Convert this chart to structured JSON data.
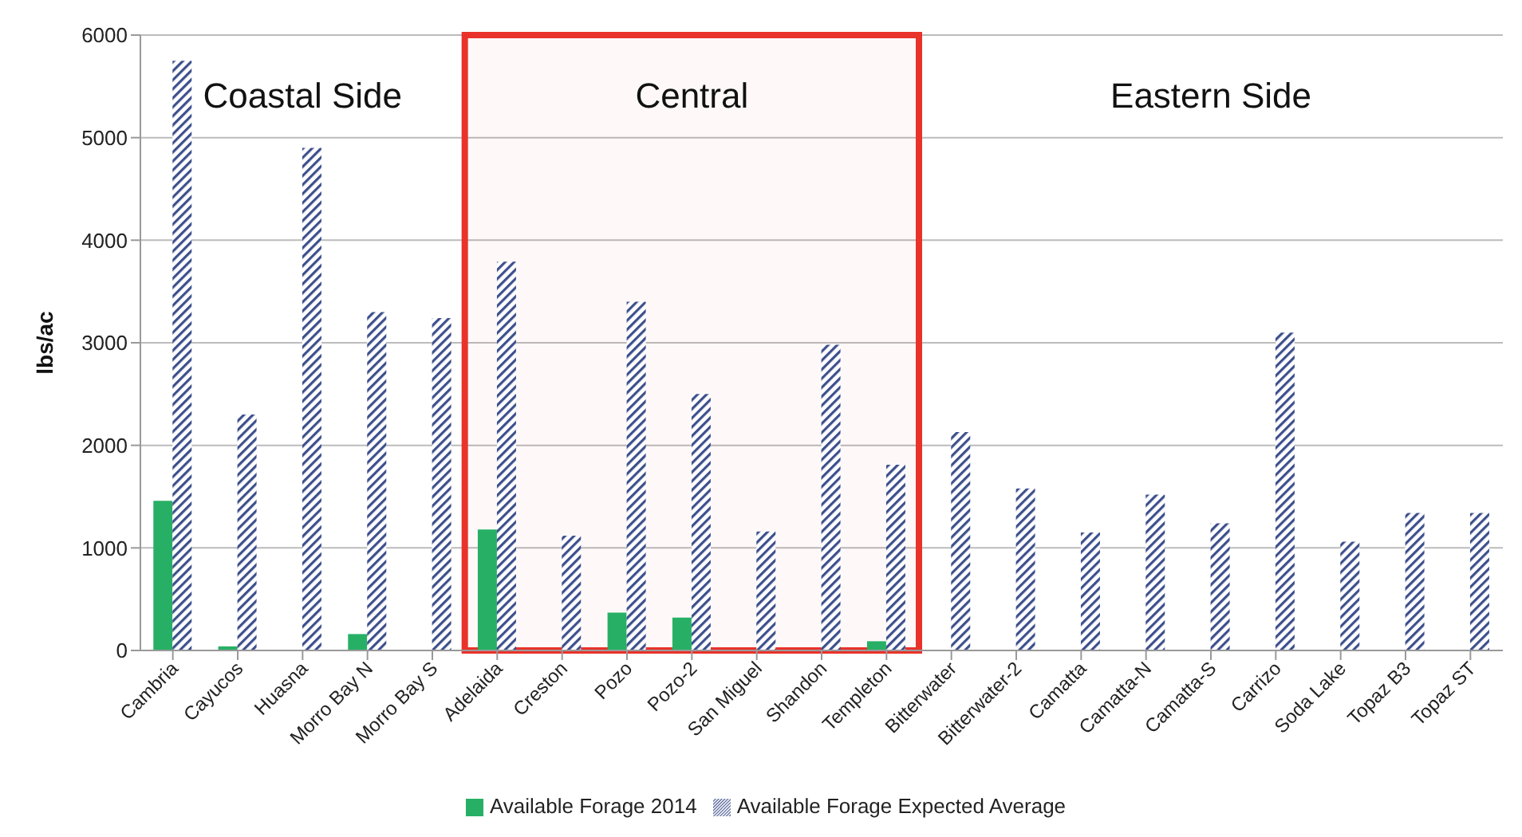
{
  "chart_data": {
    "type": "bar",
    "ylabel": "lbs/ac",
    "categories": [
      "Cambria",
      "Cayucos",
      "Huasna",
      "Morro Bay N",
      "Morro Bay S",
      "Adelaida",
      "Creston",
      "Pozo",
      "Pozo-2",
      "San Miguel",
      "Shandon",
      "Templeton",
      "Bitterwater",
      "Bitterwater-2",
      "Camatta",
      "Camatta-N",
      "Camatta-S",
      "Carrizo",
      "Soda Lake",
      "Topaz B3",
      "Topaz ST"
    ],
    "series": [
      {
        "name": "Available Forage 2014",
        "color": "#27b065",
        "values": [
          1460,
          40,
          0,
          160,
          0,
          1180,
          0,
          370,
          320,
          0,
          0,
          90,
          0,
          0,
          0,
          0,
          0,
          0,
          0,
          0,
          0
        ]
      },
      {
        "name": "Available Forage Expected Average",
        "color": "#3d4f8c",
        "values": [
          5750,
          2300,
          4900,
          3300,
          3240,
          3790,
          1120,
          3400,
          2500,
          1160,
          2980,
          1810,
          2130,
          1580,
          1150,
          1520,
          1240,
          3100,
          1060,
          1340,
          1340
        ]
      }
    ],
    "ylim": [
      0,
      6000
    ],
    "yticks": [
      0,
      1000,
      2000,
      3000,
      4000,
      5000,
      6000
    ],
    "grid": "y",
    "legend": "bottom",
    "bands": [
      {
        "axis": "x",
        "from": "Adelaida",
        "to": "Templeton",
        "label": "Central",
        "color": "#e8322a"
      }
    ],
    "annotations": [
      "Coastal Side",
      "Eastern Side"
    ]
  }
}
